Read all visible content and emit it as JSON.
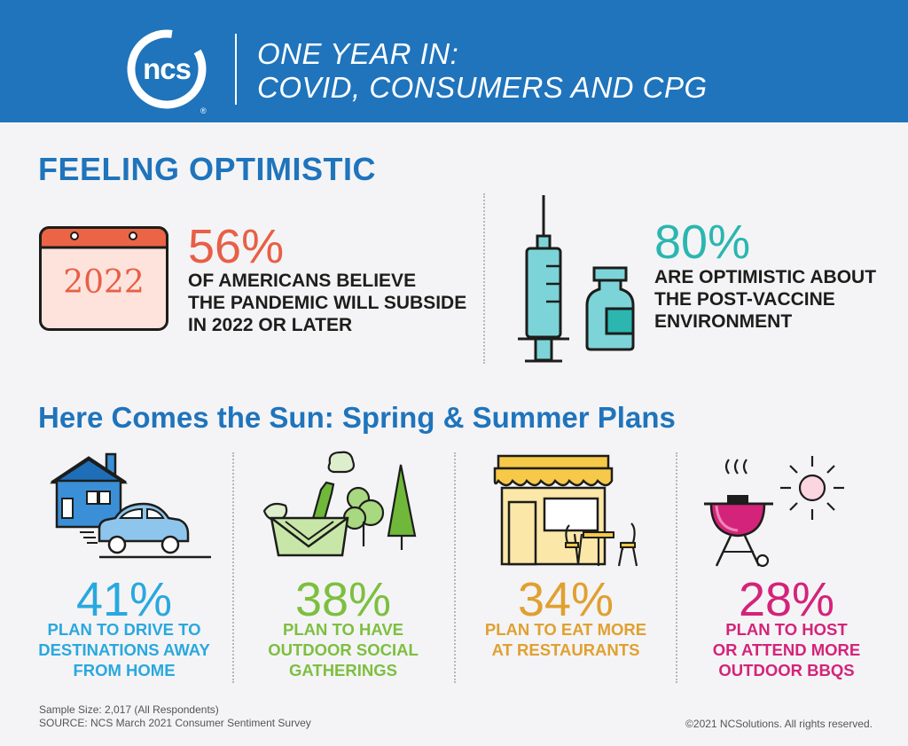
{
  "header": {
    "logo_text": "ncs",
    "logo_reg": "®",
    "title_line1": "ONE YEAR IN:",
    "title_line2": "COVID, CONSUMERS AND CPG"
  },
  "optimistic": {
    "title": "FEELING OPTIMISTIC",
    "calendar_year": "2022",
    "stat1": {
      "value": "56%",
      "lines": [
        "OF AMERICANS BELIEVE",
        "THE PANDEMIC WILL SUBSIDE",
        "IN 2022 OR LATER"
      ]
    },
    "stat2": {
      "value": "80%",
      "lines": [
        "ARE OPTIMISTIC ABOUT",
        "THE POST-VACCINE",
        "ENVIRONMENT"
      ]
    }
  },
  "plans": {
    "title": "Here Comes the Sun: Spring & Summer Plans",
    "items": [
      {
        "value": "41%",
        "lines": [
          "PLAN TO DRIVE TO",
          "DESTINATIONS AWAY",
          "FROM HOME"
        ],
        "color": "#29a8df",
        "icon": "house-car-icon"
      },
      {
        "value": "38%",
        "lines": [
          "PLAN TO HAVE",
          "OUTDOOR SOCIAL",
          "GATHERINGS"
        ],
        "color": "#7dbf3f",
        "icon": "picnic-basket-icon"
      },
      {
        "value": "34%",
        "lines": [
          "PLAN TO EAT MORE",
          "AT RESTAURANTS"
        ],
        "color": "#e0a030",
        "icon": "restaurant-icon"
      },
      {
        "value": "28%",
        "lines": [
          "PLAN TO HOST",
          "OR ATTEND MORE",
          "OUTDOOR BBQS"
        ],
        "color": "#d4237a",
        "icon": "bbq-grill-icon"
      }
    ]
  },
  "colors": {
    "brand_blue": "#1f74bc",
    "stat1": "#e85f46",
    "stat2": "#2bb6b0"
  },
  "footer": {
    "sample": "Sample Size: 2,017 (All Respondents)",
    "source": "SOURCE: NCS March 2021 Consumer Sentiment Survey",
    "copyright": "©2021 NCSolutions. All rights reserved."
  }
}
